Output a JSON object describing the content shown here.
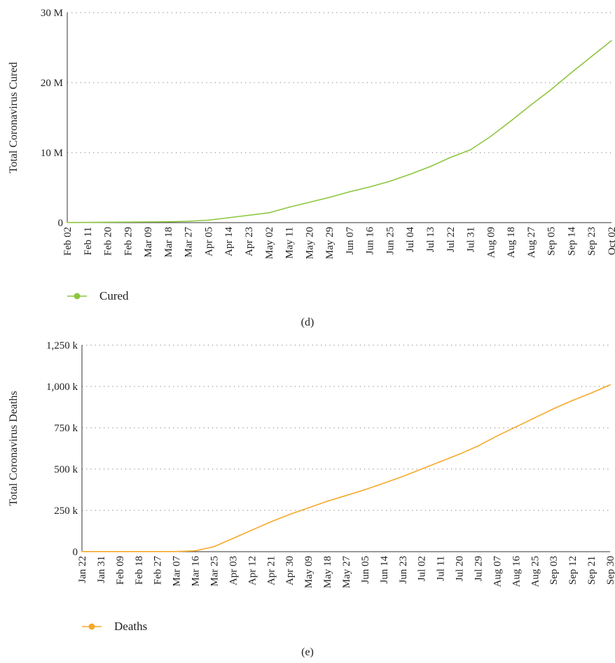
{
  "chart_data": [
    {
      "type": "line",
      "caption": "(d)",
      "ylabel": "Total Coronavirus Cured",
      "xlabel": "",
      "ylim": [
        0,
        30000000
      ],
      "yticks": [
        0,
        10000000,
        20000000,
        30000000
      ],
      "ytick_labels": [
        "0",
        "10 M",
        "20 M",
        "30 M"
      ],
      "xtick_labels": [
        "Feb 02",
        "Feb 11",
        "Feb 20",
        "Feb 29",
        "Mar 09",
        "Mar 18",
        "Mar 27",
        "Apr 05",
        "Apr 14",
        "Apr 23",
        "May 02",
        "May 11",
        "May 20",
        "May 29",
        "Jun 07",
        "Jun 16",
        "Jun 25",
        "Jul 04",
        "Jul 13",
        "Jul 22",
        "Jul 31",
        "Aug 09",
        "Aug 18",
        "Aug 27",
        "Sep 05",
        "Sep 14",
        "Sep 23",
        "Oct 02"
      ],
      "grid": "horizontal-dotted",
      "legend": "bottom-left",
      "series": [
        {
          "name": "Cured",
          "color": "#8cc63f",
          "values": [
            20000,
            30000,
            60000,
            80000,
            100000,
            120000,
            200000,
            350000,
            700000,
            1050000,
            1400000,
            2200000,
            2900000,
            3600000,
            4400000,
            5100000,
            5900000,
            6900000,
            8000000,
            9300000,
            10400000,
            12300000,
            14500000,
            16800000,
            19000000,
            21400000,
            23700000,
            26000000
          ]
        }
      ]
    },
    {
      "type": "line",
      "caption": "(e)",
      "ylabel": "Total Coronavirus Deaths",
      "xlabel": "",
      "ylim": [
        0,
        1250000
      ],
      "yticks": [
        0,
        250000,
        500000,
        750000,
        1000000,
        1250000
      ],
      "ytick_labels": [
        "0",
        "250 k",
        "500 k",
        "750 k",
        "1,000 k",
        "1,250 k"
      ],
      "xtick_labels": [
        "Jan 22",
        "Jan 31",
        "Feb 09",
        "Feb 18",
        "Feb 27",
        "Mar 07",
        "Mar 16",
        "Mar 25",
        "Apr 03",
        "Apr 12",
        "Apr 21",
        "Apr 30",
        "May 09",
        "May 18",
        "May 27",
        "Jun 05",
        "Jun 14",
        "Jun 23",
        "Jul 02",
        "Jul 11",
        "Jul 20",
        "Jul 29",
        "Aug 07",
        "Aug 16",
        "Aug 25",
        "Sep 03",
        "Sep 12",
        "Sep 21",
        "Sep 30"
      ],
      "grid": "horizontal-dotted",
      "legend": "bottom-left",
      "series": [
        {
          "name": "Deaths",
          "color": "#f7a82a",
          "values": [
            1000,
            1000,
            1000,
            1000,
            1000,
            1000,
            5000,
            30000,
            80000,
            130000,
            180000,
            225000,
            265000,
            305000,
            340000,
            375000,
            415000,
            455000,
            500000,
            545000,
            590000,
            640000,
            700000,
            755000,
            810000,
            865000,
            915000,
            960000,
            1010000
          ]
        }
      ]
    }
  ]
}
